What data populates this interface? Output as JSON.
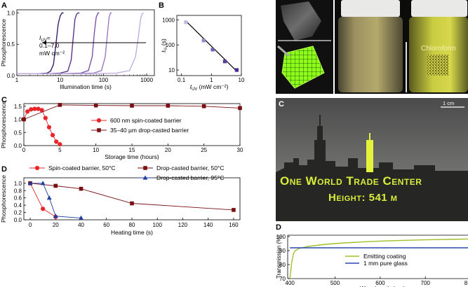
{
  "panels": {
    "A": "A",
    "B": "B",
    "C": "C",
    "D": "D",
    "photo_C": "C",
    "photo_D": "D"
  },
  "panel_A": {
    "annotation": [
      "I_UV =",
      "0.1–7.0",
      "mW cm⁻²"
    ],
    "annotation_sub": "UV",
    "annotation_lines": [
      "= ",
      "0.1–7.0",
      "mW cm⁻²"
    ]
  },
  "photo_texts": {
    "chloroform": "Chloroform",
    "scale": "1 cm",
    "line1": "One World Trade Center",
    "line2": "Height: 541 m"
  },
  "chart_data": [
    {
      "id": "A",
      "type": "line",
      "xlabel": "Illumination time (s)",
      "ylabel": "Phosphorescence",
      "xscale": "log",
      "xlim": [
        1,
        1500
      ],
      "ylim": [
        0,
        1.05
      ],
      "xticks": [
        "1",
        "10",
        "100",
        "1000"
      ],
      "yticks": [
        "0.0",
        "0.5",
        "1.0"
      ],
      "series": [
        {
          "color": "#3b1f6e",
          "x": [
            1,
            3,
            5,
            6,
            7,
            8,
            9,
            10,
            11,
            12
          ],
          "y": [
            0.03,
            0.03,
            0.04,
            0.07,
            0.18,
            0.5,
            0.82,
            0.95,
            1.0,
            1.0
          ]
        },
        {
          "color": "#5a3590",
          "x": [
            1,
            5,
            10,
            15,
            18,
            20,
            22,
            24,
            26,
            28
          ],
          "y": [
            0.03,
            0.03,
            0.04,
            0.07,
            0.25,
            0.6,
            0.9,
            0.98,
            1.0,
            1.0
          ]
        },
        {
          "color": "#7a55ad",
          "x": [
            1,
            10,
            30,
            45,
            55,
            62,
            68,
            75,
            80
          ],
          "y": [
            0.03,
            0.03,
            0.04,
            0.08,
            0.3,
            0.7,
            0.93,
            1.0,
            1.0
          ]
        },
        {
          "color": "#9b7bc6",
          "x": [
            1,
            20,
            60,
            90,
            110,
            125,
            135,
            145,
            155
          ],
          "y": [
            0.03,
            0.03,
            0.04,
            0.08,
            0.3,
            0.7,
            0.93,
            1.0,
            1.0
          ]
        },
        {
          "color": "#c2addd",
          "x": [
            1,
            50,
            200,
            400,
            550,
            650,
            720,
            780,
            850
          ],
          "y": [
            0.03,
            0.03,
            0.04,
            0.08,
            0.3,
            0.65,
            0.9,
            0.99,
            1.0
          ]
        }
      ]
    },
    {
      "id": "B",
      "type": "scatter",
      "xlabel": "I_UV (mW cm⁻²)",
      "xlabel_main": "I",
      "xlabel_sub": "UV",
      "xlabel_rest": " (mW cm⁻²)",
      "ylabel": "t½ (s)",
      "ylabel_main": "t",
      "ylabel_sub": "½",
      "ylabel_rest": " (s)",
      "xscale": "log",
      "yscale": "log",
      "xlim": [
        0.07,
        10
      ],
      "ylim": [
        6,
        1500
      ],
      "xticks": [
        "0.1",
        "1",
        "10"
      ],
      "yticks": [
        "10",
        "100",
        "1000"
      ],
      "points": [
        {
          "x": 0.14,
          "y": 800,
          "color": "#c6b7e2"
        },
        {
          "x": 0.55,
          "y": 150,
          "color": "#9b87cf"
        },
        {
          "x": 1.1,
          "y": 65,
          "color": "#7561b5"
        },
        {
          "x": 2.8,
          "y": 22,
          "color": "#5a3e9e"
        },
        {
          "x": 7.0,
          "y": 10,
          "color": "#4b2a90"
        }
      ],
      "fit": {
        "x": [
          0.14,
          7.0
        ],
        "y": [
          900,
          9
        ]
      }
    },
    {
      "id": "C",
      "type": "line",
      "xlabel": "Storage time (hours)",
      "ylabel": "Phosphorescence",
      "xlim": [
        0,
        30
      ],
      "ylim": [
        0,
        1.6
      ],
      "xticks": [
        "0",
        "5",
        "10",
        "15",
        "20",
        "25",
        "30"
      ],
      "yticks": [
        "0.0",
        "0.5",
        "1.0",
        "1.5"
      ],
      "series": [
        {
          "name": "600 nm spin-coated barrier",
          "color": "#e8252a",
          "marker": "circle",
          "x": [
            0,
            0.5,
            1,
            1.5,
            2,
            2.5,
            3,
            3.5,
            4,
            4.5,
            5
          ],
          "y": [
            1.0,
            1.3,
            1.38,
            1.4,
            1.4,
            1.35,
            1.05,
            0.7,
            0.4,
            0.15,
            0.05
          ]
        },
        {
          "name": "35–40 µm drop-casted barrier",
          "color": "#7a0f12",
          "marker": "square",
          "x": [
            0,
            5,
            10,
            15,
            20,
            25,
            30
          ],
          "y": [
            1.0,
            1.55,
            1.53,
            1.52,
            1.52,
            1.5,
            1.43
          ]
        }
      ]
    },
    {
      "id": "D",
      "type": "line",
      "xlabel": "Heating time (s)",
      "ylabel": "Phosphorescence",
      "xlim": [
        0,
        160
      ],
      "ylim": [
        0,
        1.15
      ],
      "xticks": [
        "0",
        "20",
        "40",
        "60",
        "80",
        "100",
        "120",
        "140",
        "160"
      ],
      "yticks": [
        "0.0",
        "0.2",
        "0.4",
        "0.6",
        "0.8",
        "1.0"
      ],
      "series": [
        {
          "name": "Spin-coated barrier, 50°C",
          "color": "#e8252a",
          "marker": "circle",
          "x": [
            0,
            10,
            20
          ],
          "y": [
            1.0,
            0.3,
            0.08
          ]
        },
        {
          "name": "Drop-casted barrier, 50°C",
          "color": "#7a0f12",
          "marker": "square",
          "x": [
            0,
            20,
            40,
            80,
            160
          ],
          "y": [
            1.0,
            0.93,
            0.85,
            0.45,
            0.27
          ]
        },
        {
          "name": "Drop-casted barrier, 95°C",
          "color": "#1f3d9e",
          "marker": "triangle",
          "x": [
            0,
            10,
            15,
            20,
            40
          ],
          "y": [
            1.0,
            1.0,
            0.6,
            0.1,
            0.05
          ]
        }
      ]
    },
    {
      "id": "D_photo",
      "type": "line",
      "xlabel": "Wavelength (nm)",
      "ylabel": "Transmission (%)",
      "xlim": [
        395,
        810
      ],
      "ylim": [
        70,
        101
      ],
      "xticks": [
        "400",
        "500",
        "600",
        "700",
        "8"
      ],
      "yticks": [
        "70",
        "80",
        "90",
        "100"
      ],
      "series": [
        {
          "name": "Emitting coating",
          "color": "#9dc02a",
          "x": [
            400,
            404,
            408,
            412,
            420,
            440,
            480,
            520,
            560,
            600,
            650,
            700,
            750,
            800
          ],
          "y": [
            70,
            82,
            88,
            90,
            91.5,
            93,
            94.5,
            95.5,
            96.2,
            96.8,
            97.3,
            97.7,
            98,
            98.3
          ]
        },
        {
          "name": "1 mm pure glass",
          "color": "#2a48b0",
          "x": [
            400,
            800
          ],
          "y": [
            92,
            92
          ]
        }
      ]
    }
  ]
}
